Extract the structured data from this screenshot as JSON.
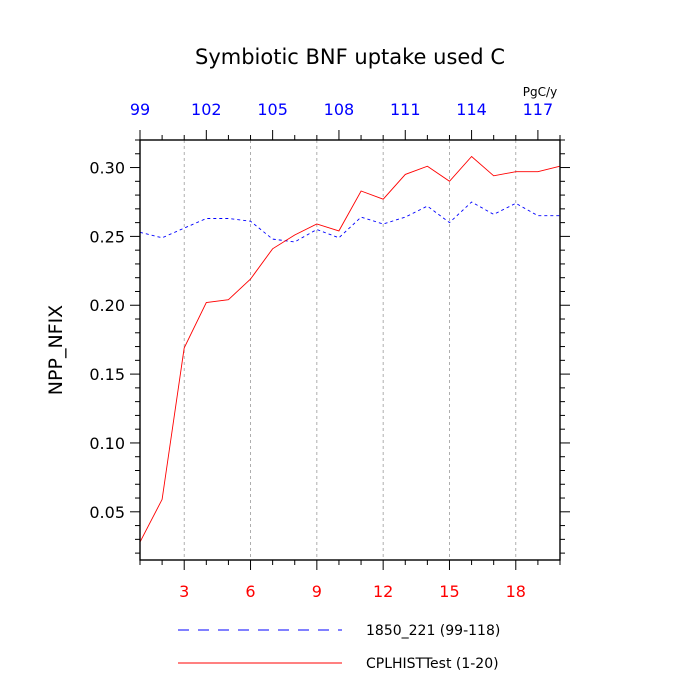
{
  "chart_data": {
    "type": "line",
    "title": "Symbiotic BNF uptake used C",
    "ylabel": "NPP_NFIX",
    "top_axis_unit": "PgC/y",
    "xlim": [
      1,
      20
    ],
    "top_xlim": [
      99,
      118
    ],
    "ylim": [
      0.015,
      0.32
    ],
    "x_ticks": [
      3,
      6,
      9,
      12,
      15,
      18
    ],
    "x_tick_labels": [
      "3",
      "6",
      "9",
      "12",
      "15",
      "18"
    ],
    "top_ticks": [
      99,
      102,
      105,
      108,
      111,
      114,
      117
    ],
    "top_tick_labels": [
      "99",
      "102",
      "105",
      "108",
      "111",
      "114",
      "117"
    ],
    "y_ticks": [
      0.05,
      0.1,
      0.15,
      0.2,
      0.25,
      0.3
    ],
    "y_tick_labels": [
      "0.05",
      "0.10",
      "0.15",
      "0.20",
      "0.25",
      "0.30"
    ],
    "vertical_grid": true,
    "bottom_axis_color": "#ff0000",
    "top_axis_color": "#0000ff",
    "series": [
      {
        "name": "1850_221 (99-118)",
        "axis": "top",
        "color": "#0000ff",
        "dash": "dashed",
        "x": [
          99,
          100,
          101,
          102,
          103,
          104,
          105,
          106,
          107,
          108,
          109,
          110,
          111,
          112,
          113,
          114,
          115,
          116,
          117,
          118
        ],
        "values": [
          0.253,
          0.249,
          0.256,
          0.263,
          0.263,
          0.261,
          0.248,
          0.246,
          0.255,
          0.249,
          0.264,
          0.259,
          0.264,
          0.272,
          0.26,
          0.275,
          0.266,
          0.274,
          0.265,
          0.265
        ]
      },
      {
        "name": "CPLHISTTest (1-20)",
        "axis": "bottom",
        "color": "#ff0000",
        "dash": "solid",
        "x": [
          1,
          2,
          3,
          4,
          5,
          6,
          7,
          8,
          9,
          10,
          11,
          12,
          13,
          14,
          15,
          16,
          17,
          18,
          19,
          20
        ],
        "values": [
          0.028,
          0.059,
          0.169,
          0.202,
          0.204,
          0.219,
          0.241,
          0.251,
          0.259,
          0.254,
          0.283,
          0.277,
          0.295,
          0.301,
          0.29,
          0.308,
          0.294,
          0.297,
          0.297,
          0.301
        ]
      }
    ]
  }
}
